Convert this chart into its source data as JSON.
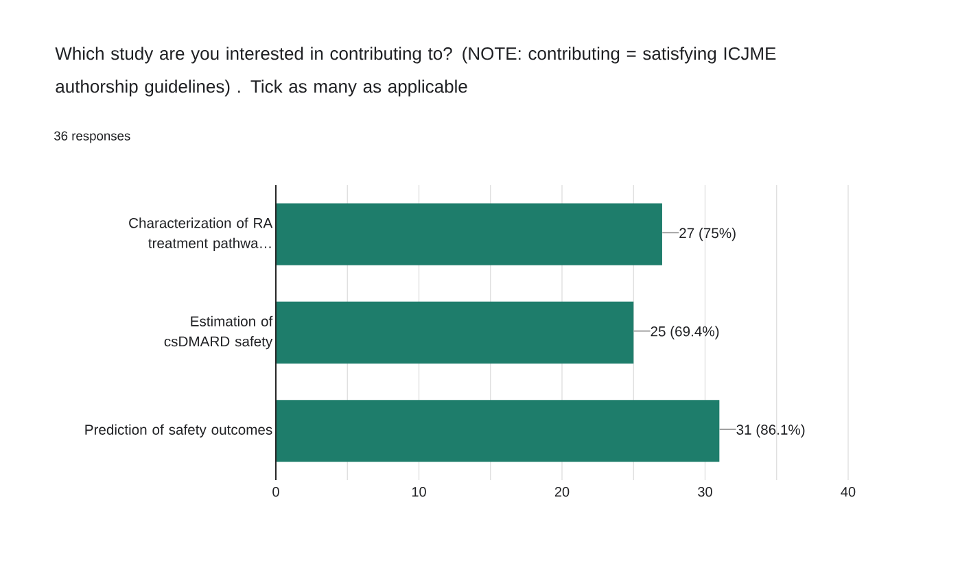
{
  "chart_data": {
    "type": "bar",
    "orientation": "horizontal",
    "title": "Which study are you interested in contributing to? (NOTE: contributing = satisfying ICJME authorship guidelines) . Tick as many as applicable",
    "subtitle": "36 responses",
    "categories": [
      "Characterization of RA treatment pathwa…",
      "Estimation of csDMARD safety",
      "Prediction of safety outcomes"
    ],
    "values": [
      27,
      25,
      31
    ],
    "value_labels": [
      "27 (75%)",
      "25 (69.4%)",
      "31 (86.1%)"
    ],
    "color": "#1e7d6b",
    "xlim": [
      0,
      40
    ],
    "xticks": [
      0,
      {
        "value": 5,
        "label": null
      },
      10,
      {
        "value": 15,
        "label": null
      },
      20,
      {
        "value": 25,
        "label": null
      },
      30,
      {
        "value": 35,
        "label": null
      },
      40
    ],
    "grid": "x"
  }
}
